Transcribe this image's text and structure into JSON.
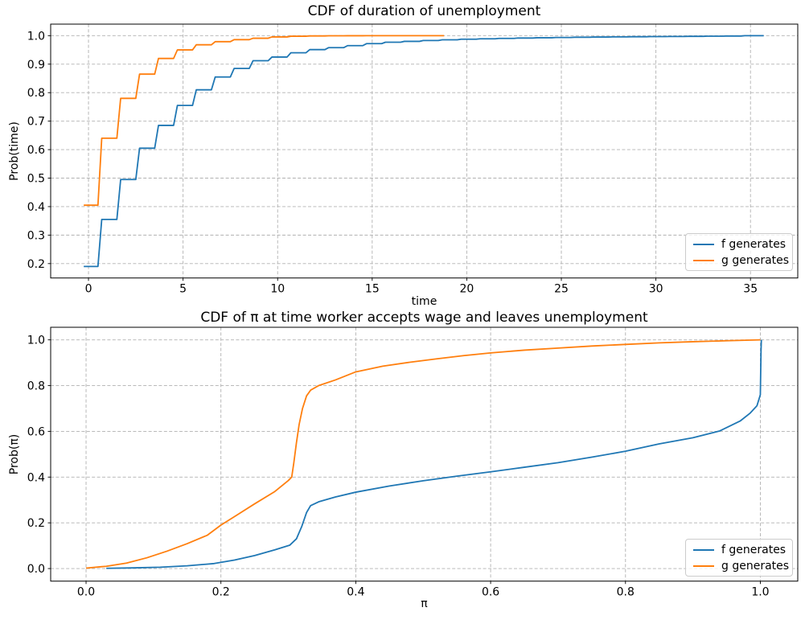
{
  "figure": {
    "background": "#ffffff"
  },
  "chart_data": [
    {
      "type": "step",
      "title": "CDF of duration of unemployment",
      "xlabel": "time",
      "ylabel": "Prob(time)",
      "xlim": [
        -2.0,
        37.5
      ],
      "ylim": [
        0.1495,
        1.0405
      ],
      "grid": "dashed",
      "legend_position": "lower right",
      "xticks": {
        "values": [
          0,
          5,
          10,
          15,
          20,
          25,
          30,
          35
        ],
        "labels": [
          "0",
          "5",
          "10",
          "15",
          "20",
          "25",
          "30",
          "35"
        ]
      },
      "yticks": {
        "values": [
          0.2,
          0.3,
          0.4,
          0.5,
          0.6,
          0.7,
          0.8,
          0.9,
          1.0
        ],
        "labels": [
          "0.2",
          "0.3",
          "0.4",
          "0.5",
          "0.6",
          "0.7",
          "0.8",
          "0.9",
          "1.0"
        ]
      },
      "series": [
        {
          "name": "f generates",
          "color": "#1f77b4",
          "style": "step",
          "x_start": -0.25,
          "x_end": 35.7,
          "t": [
            0,
            1,
            2,
            3,
            4,
            5,
            6,
            7,
            8,
            9,
            10,
            11,
            12,
            13,
            14,
            15,
            16,
            17,
            18,
            19,
            20,
            21,
            22,
            23,
            24,
            25,
            26,
            27,
            28,
            29,
            30,
            31,
            32,
            33,
            34,
            35
          ],
          "cdf": [
            0.19,
            0.355,
            0.495,
            0.605,
            0.685,
            0.755,
            0.81,
            0.855,
            0.885,
            0.912,
            0.925,
            0.94,
            0.951,
            0.958,
            0.965,
            0.972,
            0.977,
            0.98,
            0.983,
            0.9855,
            0.9875,
            0.989,
            0.9905,
            0.9917,
            0.9927,
            0.9936,
            0.9944,
            0.9951,
            0.9957,
            0.9962,
            0.9967,
            0.9972,
            0.9977,
            0.9982,
            0.9987,
            1.0
          ]
        },
        {
          "name": "g generates",
          "color": "#ff7f0e",
          "style": "step",
          "x_start": -0.25,
          "x_end": 18.8,
          "t": [
            0,
            1,
            2,
            3,
            4,
            5,
            6,
            7,
            8,
            9,
            10,
            11,
            12,
            13,
            14,
            15,
            16,
            17,
            18
          ],
          "cdf": [
            0.405,
            0.64,
            0.78,
            0.865,
            0.92,
            0.95,
            0.968,
            0.979,
            0.986,
            0.991,
            0.9955,
            0.998,
            0.999,
            0.9995,
            0.9998,
            0.9999,
            1.0,
            1.0,
            1.0
          ]
        }
      ]
    },
    {
      "type": "line",
      "title": "CDF of π at time worker accepts wage and leaves unemployment",
      "xlabel": "π",
      "ylabel": "Prob(π)",
      "xlim": [
        -0.0525,
        1.0555
      ],
      "ylim": [
        -0.055,
        1.055
      ],
      "grid": "dashed",
      "legend_position": "lower right",
      "xticks": {
        "values": [
          0.0,
          0.2,
          0.4,
          0.6,
          0.8,
          1.0
        ],
        "labels": [
          "0.0",
          "0.2",
          "0.4",
          "0.6",
          "0.8",
          "1.0"
        ]
      },
      "yticks": {
        "values": [
          0.0,
          0.2,
          0.4,
          0.6,
          0.8,
          1.0
        ],
        "labels": [
          "0.0",
          "0.2",
          "0.4",
          "0.6",
          "0.8",
          "1.0"
        ]
      },
      "series": [
        {
          "name": "f generates",
          "color": "#1f77b4",
          "style": "line",
          "points": [
            [
              0.03,
              0.001
            ],
            [
              0.07,
              0.003
            ],
            [
              0.11,
              0.006
            ],
            [
              0.15,
              0.012
            ],
            [
              0.19,
              0.022
            ],
            [
              0.22,
              0.037
            ],
            [
              0.25,
              0.057
            ],
            [
              0.28,
              0.082
            ],
            [
              0.302,
              0.102
            ],
            [
              0.312,
              0.13
            ],
            [
              0.32,
              0.185
            ],
            [
              0.327,
              0.245
            ],
            [
              0.333,
              0.275
            ],
            [
              0.345,
              0.292
            ],
            [
              0.37,
              0.313
            ],
            [
              0.4,
              0.334
            ],
            [
              0.45,
              0.361
            ],
            [
              0.5,
              0.384
            ],
            [
              0.55,
              0.404
            ],
            [
              0.6,
              0.423
            ],
            [
              0.65,
              0.443
            ],
            [
              0.7,
              0.463
            ],
            [
              0.75,
              0.487
            ],
            [
              0.8,
              0.513
            ],
            [
              0.85,
              0.545
            ],
            [
              0.9,
              0.572
            ],
            [
              0.94,
              0.602
            ],
            [
              0.97,
              0.645
            ],
            [
              0.985,
              0.68
            ],
            [
              0.995,
              0.712
            ],
            [
              1.0,
              0.76
            ],
            [
              1.001,
              0.95
            ],
            [
              1.0015,
              1.0
            ]
          ]
        },
        {
          "name": "g generates",
          "color": "#ff7f0e",
          "style": "line",
          "points": [
            [
              0.0,
              0.002
            ],
            [
              0.03,
              0.01
            ],
            [
              0.06,
              0.024
            ],
            [
              0.09,
              0.047
            ],
            [
              0.12,
              0.076
            ],
            [
              0.15,
              0.109
            ],
            [
              0.18,
              0.146
            ],
            [
              0.2,
              0.19
            ],
            [
              0.22,
              0.227
            ],
            [
              0.25,
              0.283
            ],
            [
              0.28,
              0.337
            ],
            [
              0.3,
              0.385
            ],
            [
              0.305,
              0.4
            ],
            [
              0.308,
              0.46
            ],
            [
              0.312,
              0.55
            ],
            [
              0.316,
              0.63
            ],
            [
              0.321,
              0.7
            ],
            [
              0.327,
              0.755
            ],
            [
              0.333,
              0.78
            ],
            [
              0.345,
              0.8
            ],
            [
              0.37,
              0.825
            ],
            [
              0.4,
              0.86
            ],
            [
              0.44,
              0.885
            ],
            [
              0.48,
              0.902
            ],
            [
              0.52,
              0.917
            ],
            [
              0.56,
              0.931
            ],
            [
              0.6,
              0.943
            ],
            [
              0.65,
              0.955
            ],
            [
              0.7,
              0.964
            ],
            [
              0.75,
              0.973
            ],
            [
              0.8,
              0.98
            ],
            [
              0.85,
              0.987
            ],
            [
              0.9,
              0.992
            ],
            [
              0.95,
              0.996
            ],
            [
              1.0,
              1.0
            ]
          ]
        }
      ]
    }
  ]
}
